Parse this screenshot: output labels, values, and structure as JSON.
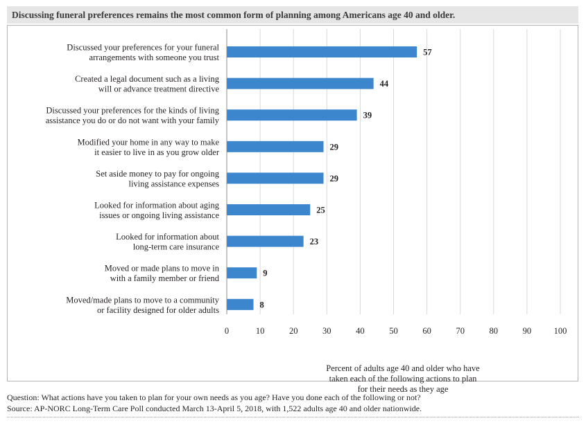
{
  "header": {
    "title": "Discussing funeral preferences remains the most common form of planning among Americans age 40 and older."
  },
  "chart_data": {
    "type": "bar",
    "orientation": "horizontal",
    "categories": [
      [
        "Discussed your preferences for your funeral",
        "arrangements with someone you trust"
      ],
      [
        "Created a legal document such as a living",
        "will or advance treatment directive"
      ],
      [
        "Discussed your preferences for the kinds of living",
        "assistance you do or do not want with your family"
      ],
      [
        "Modified your home in any way to make",
        "it easier to live in as you grow older"
      ],
      [
        "Set aside money to pay for ongoing",
        "living assistance expenses"
      ],
      [
        "Looked for information about aging",
        "issues or ongoing living assistance"
      ],
      [
        "Looked for information about",
        "long-term care insurance"
      ],
      [
        "Moved or made plans to move in",
        "with a family member or friend"
      ],
      [
        "Moved/made plans to move to a community",
        "or facility designed for older adults"
      ]
    ],
    "values": [
      57,
      44,
      39,
      29,
      29,
      25,
      23,
      9,
      8
    ],
    "xlim": [
      0,
      100
    ],
    "xticks": [
      0,
      10,
      20,
      30,
      40,
      50,
      60,
      70,
      80,
      90,
      100
    ],
    "xlabel": [
      "Percent of adults age 40 and older who have",
      "taken each of the following actions to plan",
      "for their needs as they age"
    ],
    "ylabel": "",
    "grid": "vertical",
    "bar_color": "#3b86cd",
    "data_labels": true
  },
  "footnotes": {
    "question": "Question: What actions have you taken to plan for your own needs as you age? Have you done each of the following or not?",
    "source": "Source: AP-NORC Long-Term Care Poll conducted March 13-April 5, 2018, with 1,522 adults age 40 and older nationwide."
  }
}
